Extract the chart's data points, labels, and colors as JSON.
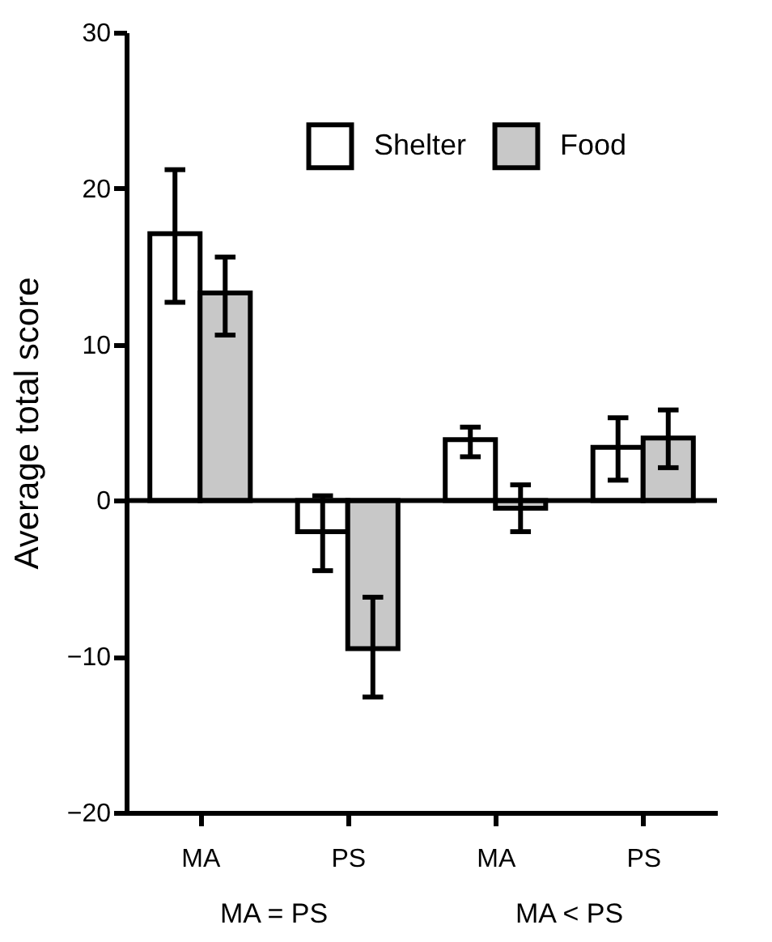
{
  "chart_data": {
    "type": "bar",
    "ylabel": "Average  total score",
    "categories": [
      "MA",
      "PS",
      "MA",
      "PS"
    ],
    "series": [
      {
        "name": "Shelter",
        "color": "#ffffff",
        "values": [
          17.1,
          -2.0,
          3.9,
          3.4
        ],
        "errors": [
          [
            12.7,
            21.2
          ],
          [
            -4.5,
            0.3
          ],
          [
            2.8,
            4.7
          ],
          [
            1.3,
            5.3
          ]
        ]
      },
      {
        "name": "Food",
        "color": "#c8c8c8",
        "values": [
          13.3,
          -9.5,
          -0.5,
          4.0
        ],
        "errors": [
          [
            10.6,
            15.6
          ],
          [
            -12.6,
            -6.2
          ],
          [
            -2.0,
            1.0
          ],
          [
            2.1,
            5.8
          ]
        ]
      }
    ],
    "ylim": [
      -20,
      30
    ],
    "yticks": [
      -20,
      -10,
      0,
      10,
      20,
      30
    ],
    "grid": false,
    "legend": "top right",
    "ref_lines": [
      {
        "axis": "y",
        "value": 0
      }
    ],
    "annotations": [
      "MA = PS",
      "MA < PS"
    ]
  }
}
